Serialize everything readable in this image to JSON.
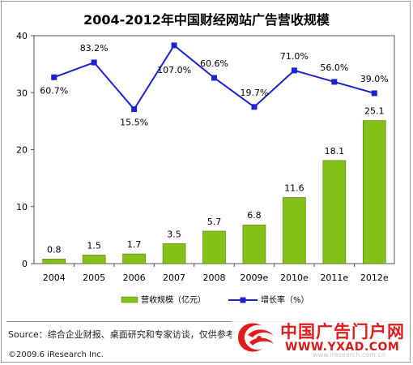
{
  "chart_data": {
    "type": "bar+line",
    "title": "2004-2012年中国财经网站广告营收规模",
    "categories": [
      "2004",
      "2005",
      "2006",
      "2007",
      "2008",
      "2009e",
      "2010e",
      "2011e",
      "2012e"
    ],
    "series": [
      {
        "name": "营收规模（亿元）",
        "type": "bar",
        "axis": "left",
        "color": "#86c11a",
        "values": [
          0.8,
          1.5,
          1.7,
          3.5,
          5.7,
          6.8,
          11.6,
          18.1,
          25.1
        ],
        "labels": [
          "0.8",
          "1.5",
          "1.7",
          "3.5",
          "5.7",
          "6.8",
          "11.6",
          "18.1",
          "25.1"
        ]
      },
      {
        "name": "增长率（%）",
        "type": "line",
        "color": "#1c22cc",
        "values": [
          32.7,
          35.3,
          27.1,
          38.3,
          32.6,
          27.5,
          33.9,
          31.9,
          29.9
        ],
        "labels": [
          "60.7%",
          "83.2%",
          "15.5%",
          "107.0%",
          "60.6%",
          "19.7%",
          "71.0%",
          "56.0%",
          "39.0%"
        ]
      }
    ],
    "ylim": [
      0,
      40
    ],
    "yticks": [
      0,
      10,
      20,
      30,
      40
    ],
    "legend_position": "bottom"
  },
  "footer": {
    "source": "Source：综合企业财报、桌面研究和专家访谈，仅供参考",
    "copyright": "©2009.6 iResearch Inc."
  },
  "watermark": {
    "text": "中国广告门户网",
    "url": "WWW.YXAD.COM",
    "faint_url": "www.iresearch.com.cn"
  }
}
